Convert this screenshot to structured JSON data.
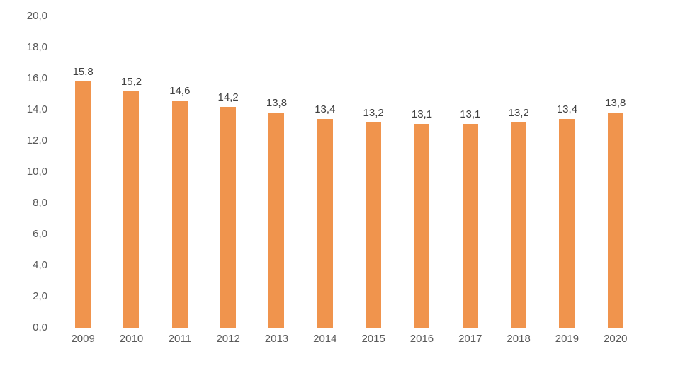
{
  "chart_data": {
    "type": "bar",
    "title": "",
    "xlabel": "",
    "ylabel": "",
    "categories": [
      "2009",
      "2010",
      "2011",
      "2012",
      "2013",
      "2014",
      "2015",
      "2016",
      "2017",
      "2018",
      "2019",
      "2020"
    ],
    "values": [
      15.8,
      15.2,
      14.6,
      14.2,
      13.8,
      13.4,
      13.2,
      13.1,
      13.1,
      13.2,
      13.4,
      13.8
    ],
    "value_labels": [
      "15,8",
      "15,2",
      "14,6",
      "14,2",
      "13,8",
      "13,4",
      "13,2",
      "13,1",
      "13,1",
      "13,2",
      "13,4",
      "13,8"
    ],
    "ylim": [
      0,
      20
    ],
    "y_tick_labels_top_to_bottom": [
      "20,0",
      "18,0",
      "16,0",
      "14,0",
      "12,0",
      "10,0",
      "8,0",
      "6,0",
      "4,0",
      "2,0",
      "0,0"
    ],
    "decimal_separator": ",",
    "grid": false,
    "legend": false,
    "colors": {
      "bar": "#f0944d",
      "axis_line": "#d9d9d9",
      "tick_labels": "#595959",
      "data_labels": "#404040",
      "background": "#ffffff"
    }
  }
}
